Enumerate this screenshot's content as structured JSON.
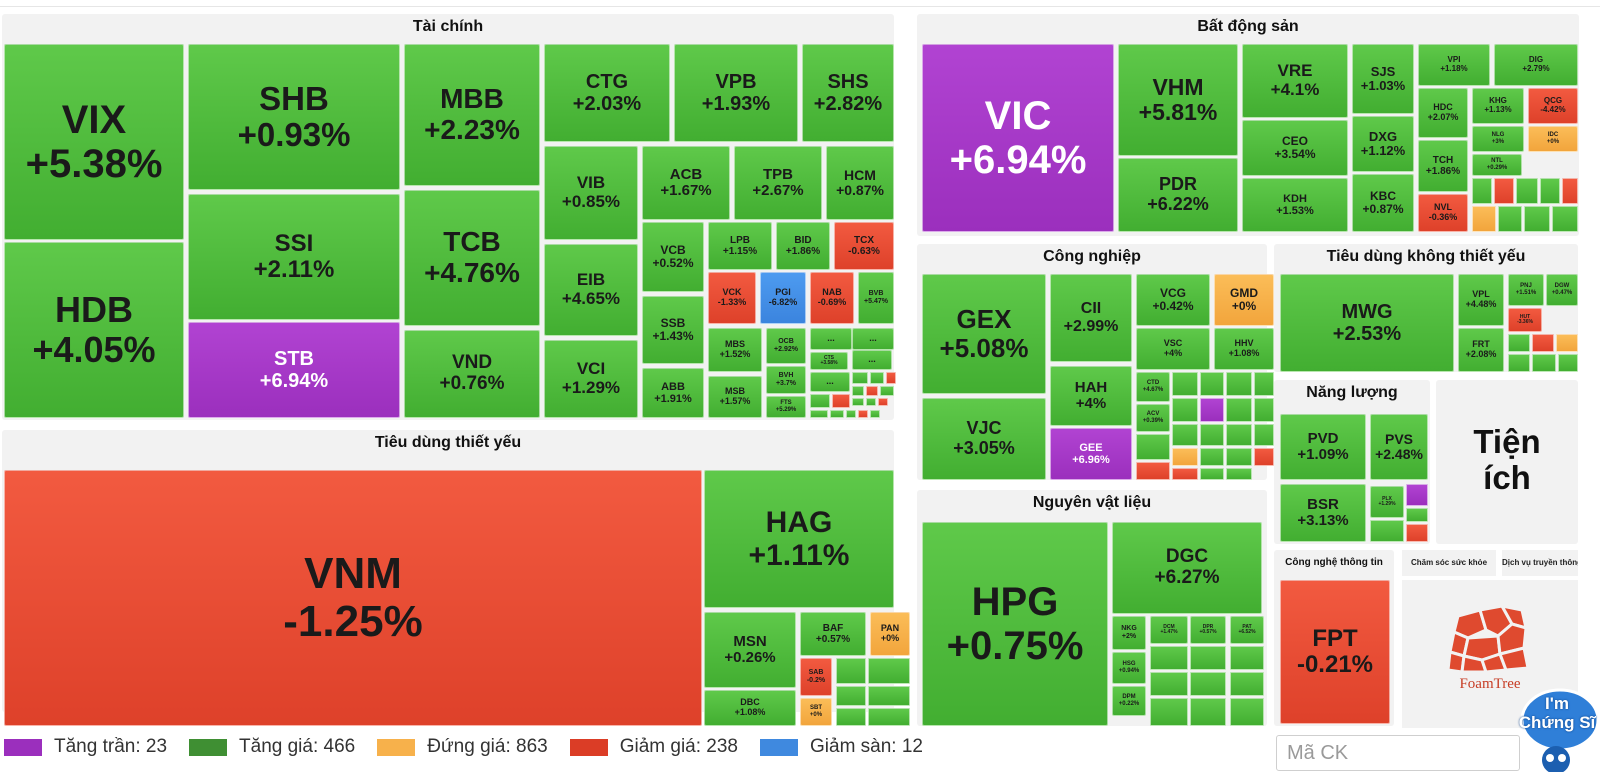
{
  "colors": {
    "tran": "#9b2fbd",
    "tang": "#3f8f33",
    "dung": "#f7b14b",
    "giam": "#db3d26",
    "san": "#3f89df"
  },
  "sectors": {
    "tai_chinh": "Tài chính",
    "bat_dong_san": "Bất động sản",
    "cong_nghiep": "Công nghiệp",
    "tieu_dung_khong_thiet_yeu": "Tiêu dùng không thiết yếu",
    "tieu_dung_thiet_yeu": "Tiêu dùng thiết yếu",
    "nguyen_vat_lieu": "Nguyên vật liệu",
    "nang_luong": "Năng lượng",
    "tien_ich": "Tiện ích",
    "cong_nghe_thong_tin": "Công nghệ thông tin",
    "cham_soc_suc_khoe": "Chăm sóc sức khỏe",
    "dich_vu_truyen_thong": "Dịch vụ truyền thông"
  },
  "stocks": [
    {
      "id": "VIX",
      "sym": "VIX",
      "chg": "+5.38%",
      "c": "g"
    },
    {
      "id": "HDB",
      "sym": "HDB",
      "chg": "+4.05%",
      "c": "g"
    },
    {
      "id": "SHB",
      "sym": "SHB",
      "chg": "+0.93%",
      "c": "g"
    },
    {
      "id": "SSI",
      "sym": "SSI",
      "chg": "+2.11%",
      "c": "g"
    },
    {
      "id": "STB",
      "sym": "STB",
      "chg": "+6.94%",
      "c": "p"
    },
    {
      "id": "MBB",
      "sym": "MBB",
      "chg": "+2.23%",
      "c": "g"
    },
    {
      "id": "TCB",
      "sym": "TCB",
      "chg": "+4.76%",
      "c": "g"
    },
    {
      "id": "VND",
      "sym": "VND",
      "chg": "+0.76%",
      "c": "g"
    },
    {
      "id": "CTG",
      "sym": "CTG",
      "chg": "+2.03%",
      "c": "g"
    },
    {
      "id": "VPB",
      "sym": "VPB",
      "chg": "+1.93%",
      "c": "g"
    },
    {
      "id": "SHS",
      "sym": "SHS",
      "chg": "+2.82%",
      "c": "g"
    },
    {
      "id": "VIB",
      "sym": "VIB",
      "chg": "+0.85%",
      "c": "g"
    },
    {
      "id": "EIB",
      "sym": "EIB",
      "chg": "+4.65%",
      "c": "g"
    },
    {
      "id": "VCI",
      "sym": "VCI",
      "chg": "+1.29%",
      "c": "g"
    },
    {
      "id": "ACB",
      "sym": "ACB",
      "chg": "+1.67%",
      "c": "g"
    },
    {
      "id": "TPB",
      "sym": "TPB",
      "chg": "+2.67%",
      "c": "g"
    },
    {
      "id": "HCM",
      "sym": "HCM",
      "chg": "+0.87%",
      "c": "g"
    },
    {
      "id": "VCB",
      "sym": "VCB",
      "chg": "+0.52%",
      "c": "g"
    },
    {
      "id": "SSB",
      "sym": "SSB",
      "chg": "+1.43%",
      "c": "g"
    },
    {
      "id": "ABB",
      "sym": "ABB",
      "chg": "+1.91%",
      "c": "g"
    },
    {
      "id": "LPB",
      "sym": "LPB",
      "chg": "+1.15%",
      "c": "g"
    },
    {
      "id": "BID",
      "sym": "BID",
      "chg": "+1.86%",
      "c": "g"
    },
    {
      "id": "TCX",
      "sym": "TCX",
      "chg": "-0.63%",
      "c": "r"
    },
    {
      "id": "VCK",
      "sym": "VCK",
      "chg": "-1.33%",
      "c": "r"
    },
    {
      "id": "PGI",
      "sym": "PGI",
      "chg": "-6.82%",
      "c": "b"
    },
    {
      "id": "NAB",
      "sym": "NAB",
      "chg": "-0.69%",
      "c": "r"
    },
    {
      "id": "BVB",
      "sym": "BVB",
      "chg": "+5.47%",
      "c": "g"
    },
    {
      "id": "MBS",
      "sym": "MBS",
      "chg": "+1.52%",
      "c": "g"
    },
    {
      "id": "OCB",
      "sym": "OCB",
      "chg": "+2.92%",
      "c": "g"
    },
    {
      "id": "BVH",
      "sym": "BVH",
      "chg": "+3.7%",
      "c": "g"
    },
    {
      "id": "MSB",
      "sym": "MSB",
      "chg": "+1.57%",
      "c": "g"
    },
    {
      "id": "FTS",
      "sym": "FTS",
      "chg": "+5.29%",
      "c": "g"
    },
    {
      "id": "CTS",
      "sym": "CTS",
      "chg": "+3.58%",
      "c": "g"
    },
    {
      "id": "VIC",
      "sym": "VIC",
      "chg": "+6.94%",
      "c": "p"
    },
    {
      "id": "VHM",
      "sym": "VHM",
      "chg": "+5.81%",
      "c": "g"
    },
    {
      "id": "PDR",
      "sym": "PDR",
      "chg": "+6.22%",
      "c": "g"
    },
    {
      "id": "VRE",
      "sym": "VRE",
      "chg": "+4.1%",
      "c": "g"
    },
    {
      "id": "CEO",
      "sym": "CEO",
      "chg": "+3.54%",
      "c": "g"
    },
    {
      "id": "KDH",
      "sym": "KDH",
      "chg": "+1.53%",
      "c": "g"
    },
    {
      "id": "SJS",
      "sym": "SJS",
      "chg": "+1.03%",
      "c": "g"
    },
    {
      "id": "DXG",
      "sym": "DXG",
      "chg": "+1.12%",
      "c": "g"
    },
    {
      "id": "KBC",
      "sym": "KBC",
      "chg": "+0.87%",
      "c": "g"
    },
    {
      "id": "VPI",
      "sym": "VPI",
      "chg": "+1.18%",
      "c": "g"
    },
    {
      "id": "DIG",
      "sym": "DIG",
      "chg": "+2.79%",
      "c": "g"
    },
    {
      "id": "HDC",
      "sym": "HDC",
      "chg": "+2.07%",
      "c": "g"
    },
    {
      "id": "KHG",
      "sym": "KHG",
      "chg": "+1.13%",
      "c": "g"
    },
    {
      "id": "QCG",
      "sym": "QCG",
      "chg": "-4.42%",
      "c": "r"
    },
    {
      "id": "NLG",
      "sym": "NLG",
      "chg": "+3%",
      "c": "g"
    },
    {
      "id": "IDC",
      "sym": "IDC",
      "chg": "+0%",
      "c": "y"
    },
    {
      "id": "TCH",
      "sym": "TCH",
      "chg": "+1.86%",
      "c": "g"
    },
    {
      "id": "NTL",
      "sym": "NTL",
      "chg": "+0.29%",
      "c": "g"
    },
    {
      "id": "NVL",
      "sym": "NVL",
      "chg": "-0.36%",
      "c": "r"
    },
    {
      "id": "GEX",
      "sym": "GEX",
      "chg": "+5.08%",
      "c": "g"
    },
    {
      "id": "VJC",
      "sym": "VJC",
      "chg": "+3.05%",
      "c": "g"
    },
    {
      "id": "CII",
      "sym": "CII",
      "chg": "+2.99%",
      "c": "g"
    },
    {
      "id": "HAH",
      "sym": "HAH",
      "chg": "+4%",
      "c": "g"
    },
    {
      "id": "GEE",
      "sym": "GEE",
      "chg": "+6.96%",
      "c": "p"
    },
    {
      "id": "VCG",
      "sym": "VCG",
      "chg": "+0.42%",
      "c": "g"
    },
    {
      "id": "GMD",
      "sym": "GMD",
      "chg": "+0%",
      "c": "y"
    },
    {
      "id": "VSC",
      "sym": "VSC",
      "chg": "+4%",
      "c": "g"
    },
    {
      "id": "HHV",
      "sym": "HHV",
      "chg": "+1.08%",
      "c": "g"
    },
    {
      "id": "CTD",
      "sym": "CTD",
      "chg": "+4.67%",
      "c": "g"
    },
    {
      "id": "ACV",
      "sym": "ACV",
      "chg": "+0.39%",
      "c": "g"
    },
    {
      "id": "MWG",
      "sym": "MWG",
      "chg": "+2.53%",
      "c": "g"
    },
    {
      "id": "VPL",
      "sym": "VPL",
      "chg": "+4.48%",
      "c": "g"
    },
    {
      "id": "FRT",
      "sym": "FRT",
      "chg": "+2.08%",
      "c": "g"
    },
    {
      "id": "PNJ",
      "sym": "PNJ",
      "chg": "+1.51%",
      "c": "g"
    },
    {
      "id": "DGW",
      "sym": "DGW",
      "chg": "+0.47%",
      "c": "g"
    },
    {
      "id": "HUT",
      "sym": "HUT",
      "chg": "-3.36%",
      "c": "r"
    },
    {
      "id": "VNM",
      "sym": "VNM",
      "chg": "-1.25%",
      "c": "r"
    },
    {
      "id": "HAG",
      "sym": "HAG",
      "chg": "+1.11%",
      "c": "g"
    },
    {
      "id": "MSN",
      "sym": "MSN",
      "chg": "+0.26%",
      "c": "g"
    },
    {
      "id": "DBC",
      "sym": "DBC",
      "chg": "+1.08%",
      "c": "g"
    },
    {
      "id": "BAF",
      "sym": "BAF",
      "chg": "+0.57%",
      "c": "g"
    },
    {
      "id": "PAN",
      "sym": "PAN",
      "chg": "+0%",
      "c": "y"
    },
    {
      "id": "SAB",
      "sym": "SAB",
      "chg": "-0.2%",
      "c": "r"
    },
    {
      "id": "SBT",
      "sym": "SBT",
      "chg": "+0%",
      "c": "y"
    },
    {
      "id": "HPG",
      "sym": "HPG",
      "chg": "+0.75%",
      "c": "g"
    },
    {
      "id": "DGC",
      "sym": "DGC",
      "chg": "+6.27%",
      "c": "g"
    },
    {
      "id": "NKG",
      "sym": "NKG",
      "chg": "+2%",
      "c": "g"
    },
    {
      "id": "DCM",
      "sym": "DCM",
      "chg": "+1.47%",
      "c": "g"
    },
    {
      "id": "DPR",
      "sym": "DPR",
      "chg": "+0.57%",
      "c": "g"
    },
    {
      "id": "PAT",
      "sym": "PAT",
      "chg": "+6.52%",
      "c": "g"
    },
    {
      "id": "HSG",
      "sym": "HSG",
      "chg": "+0.94%",
      "c": "g"
    },
    {
      "id": "DPM",
      "sym": "DPM",
      "chg": "+0.22%",
      "c": "g"
    },
    {
      "id": "PVD",
      "sym": "PVD",
      "chg": "+1.09%",
      "c": "g"
    },
    {
      "id": "PVS",
      "sym": "PVS",
      "chg": "+2.48%",
      "c": "g"
    },
    {
      "id": "BSR",
      "sym": "BSR",
      "chg": "+3.13%",
      "c": "g"
    },
    {
      "id": "PLX",
      "sym": "PLX",
      "chg": "+1.29%",
      "c": "g"
    },
    {
      "id": "FPT",
      "sym": "FPT",
      "chg": "-0.21%",
      "c": "r"
    }
  ],
  "more_label": "...",
  "legend": [
    {
      "label": "Tăng trần: 23",
      "color": "#9b2fbd"
    },
    {
      "label": "Tăng giá: 466",
      "color": "#3f8f33"
    },
    {
      "label": "Đứng giá: 863",
      "color": "#f7b14b"
    },
    {
      "label": "Giảm giá: 238",
      "color": "#db3d26"
    },
    {
      "label": "Giảm sàn: 12",
      "color": "#3f89df"
    }
  ],
  "search": {
    "placeholder": "Mã CK"
  },
  "foamtree": {
    "label": "FoamTree"
  },
  "badge": {
    "line1": "I'm",
    "line2": "Chứng Sĩ"
  }
}
